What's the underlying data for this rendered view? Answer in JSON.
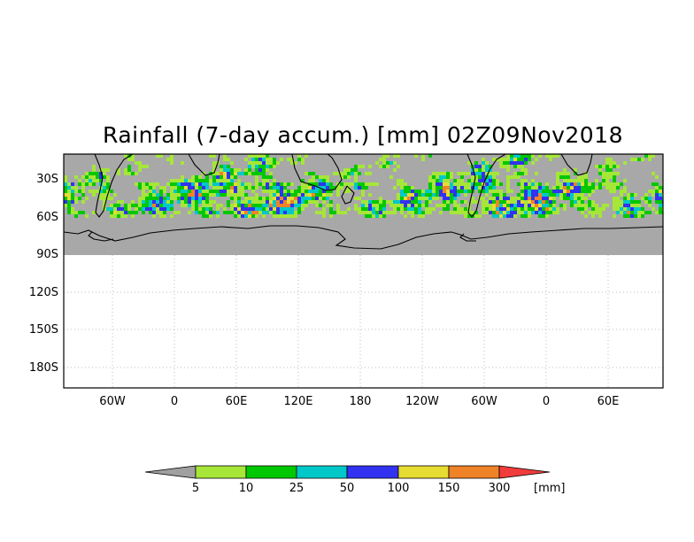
{
  "title": "Rainfall (7-day accum.) [mm] 02Z09Nov2018",
  "lat_labels": [
    "30S",
    "60S",
    "90S",
    "120S",
    "150S",
    "180S"
  ],
  "lon_labels": [
    "60W",
    "0",
    "60E",
    "120E",
    "180",
    "120W",
    "60W",
    "0",
    "60E"
  ],
  "colorbar": {
    "unit": "[mm]",
    "labels": [
      "5",
      "10",
      "25",
      "50",
      "100",
      "150",
      "300"
    ],
    "colors": [
      "#a0a0a0",
      "#a6e639",
      "#00c800",
      "#00c8c8",
      "#3232f0",
      "#e6dc32",
      "#f08228",
      "#f03c3c"
    ]
  },
  "colors": {
    "land_no_rain": "#a8a8a8",
    "coast": "#000000",
    "grid": "#bdbdbd"
  }
}
